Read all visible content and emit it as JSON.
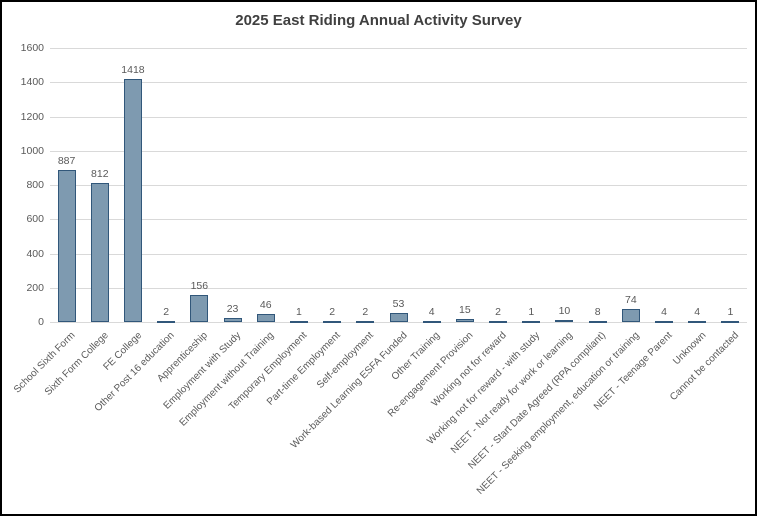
{
  "chart_data": {
    "type": "bar",
    "title": "2025 East Riding Annual Activity Survey",
    "categories": [
      "School Sixth Form",
      "Sixth Form College",
      "FE College",
      "Other Post 16 education",
      "Apprenticeship",
      "Employment with Study",
      "Employment without Training",
      "Temporary Employment",
      "Part-time Employment",
      "Self-employment",
      "Work-based Learning ESFA Funded",
      "Other Training",
      "Re-engagement Provision",
      "Working not for reward",
      "Working not for reward - with study",
      "NEET - Not ready for work or learning",
      "NEET - Start Date Agreed (RPA compliant)",
      "NEET - Seeking employment, education or training",
      "NEET - Teenage Parent",
      "Unknown",
      "Cannot be contacted"
    ],
    "values": [
      887,
      812,
      1418,
      2,
      156,
      23,
      46,
      1,
      2,
      2,
      53,
      4,
      15,
      2,
      1,
      10,
      8,
      74,
      4,
      4,
      1
    ],
    "xlabel": "",
    "ylabel": "",
    "ylim": [
      0,
      1600
    ],
    "y_tick_step": 200,
    "grid": true,
    "legend_position": "none",
    "data_labels": true,
    "colors": {
      "bar_fill": "#7e9ab0",
      "bar_stroke": "#31577a",
      "gridline": "#d9d9d9",
      "axis_text": "#595959",
      "title_text": "#404040",
      "frame_border": "#000000"
    }
  }
}
